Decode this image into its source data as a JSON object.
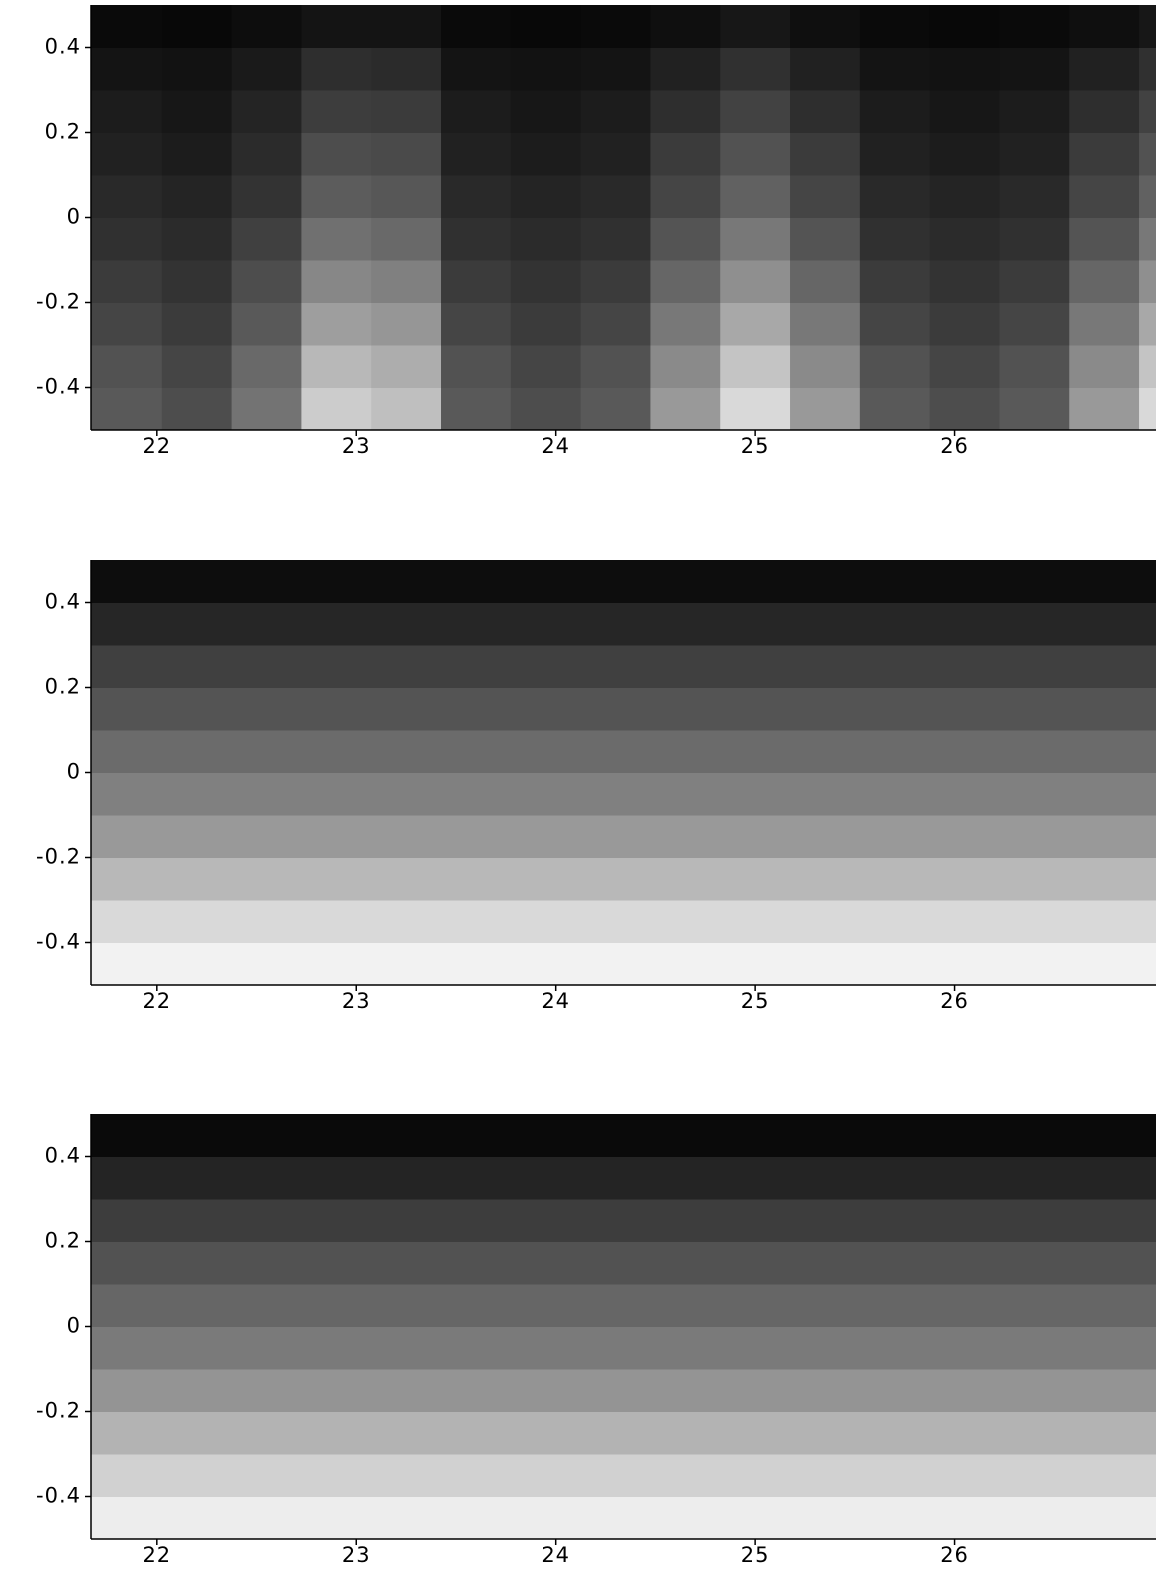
{
  "chart_data": [
    {
      "type": "heatmap",
      "cmap": "gray",
      "x": [
        21.85,
        22.2,
        22.55,
        22.9,
        23.25,
        23.6,
        23.95,
        24.3,
        24.65,
        25.0,
        25.35,
        25.7,
        26.05,
        26.4,
        26.75,
        27.1
      ],
      "y": [
        -0.45,
        -0.35,
        -0.25,
        -0.15,
        -0.05,
        0.05,
        0.15,
        0.25,
        0.35,
        0.45
      ],
      "z": [
        [
          0.35,
          0.3,
          0.45,
          0.8,
          0.75,
          0.35,
          0.3,
          0.35,
          0.6,
          0.85,
          0.6,
          0.35,
          0.3,
          0.35,
          0.6,
          0.85
        ],
        [
          0.32,
          0.27,
          0.41,
          0.72,
          0.68,
          0.32,
          0.27,
          0.32,
          0.54,
          0.77,
          0.54,
          0.32,
          0.27,
          0.32,
          0.54,
          0.77
        ],
        [
          0.27,
          0.23,
          0.35,
          0.62,
          0.59,
          0.27,
          0.23,
          0.27,
          0.47,
          0.66,
          0.47,
          0.27,
          0.23,
          0.27,
          0.47,
          0.66
        ],
        [
          0.23,
          0.2,
          0.3,
          0.53,
          0.5,
          0.23,
          0.2,
          0.23,
          0.4,
          0.56,
          0.4,
          0.23,
          0.2,
          0.23,
          0.4,
          0.56
        ],
        [
          0.19,
          0.17,
          0.25,
          0.44,
          0.41,
          0.19,
          0.17,
          0.19,
          0.33,
          0.47,
          0.33,
          0.19,
          0.17,
          0.19,
          0.33,
          0.47
        ],
        [
          0.16,
          0.14,
          0.2,
          0.36,
          0.34,
          0.16,
          0.14,
          0.16,
          0.27,
          0.38,
          0.27,
          0.16,
          0.14,
          0.16,
          0.27,
          0.38
        ],
        [
          0.13,
          0.11,
          0.17,
          0.3,
          0.29,
          0.13,
          0.11,
          0.13,
          0.23,
          0.32,
          0.23,
          0.13,
          0.11,
          0.13,
          0.23,
          0.32
        ],
        [
          0.11,
          0.09,
          0.14,
          0.24,
          0.23,
          0.11,
          0.09,
          0.11,
          0.18,
          0.26,
          0.18,
          0.11,
          0.09,
          0.11,
          0.18,
          0.26
        ],
        [
          0.08,
          0.07,
          0.1,
          0.18,
          0.17,
          0.08,
          0.07,
          0.08,
          0.13,
          0.19,
          0.13,
          0.08,
          0.07,
          0.08,
          0.13,
          0.19
        ],
        [
          0.04,
          0.03,
          0.05,
          0.08,
          0.08,
          0.04,
          0.03,
          0.04,
          0.06,
          0.09,
          0.06,
          0.04,
          0.03,
          0.04,
          0.06,
          0.09
        ]
      ],
      "xlim": [
        21.67,
        27.01
      ],
      "ylim": [
        -0.5,
        0.5
      ],
      "xticks": [
        22,
        23,
        24,
        25,
        26
      ],
      "yticks": [
        -0.4,
        -0.2,
        0,
        0.2,
        0.4
      ]
    },
    {
      "type": "heatmap",
      "cmap": "gray",
      "x": [
        24.34
      ],
      "y": [
        -0.45,
        -0.35,
        -0.25,
        -0.15,
        -0.05,
        0.05,
        0.15,
        0.25,
        0.35,
        0.45
      ],
      "z": [
        [
          0.95
        ],
        [
          0.85
        ],
        [
          0.72
        ],
        [
          0.6
        ],
        [
          0.5
        ],
        [
          0.42
        ],
        [
          0.33
        ],
        [
          0.25
        ],
        [
          0.15
        ],
        [
          0.05
        ]
      ],
      "xlim": [
        21.67,
        27.01
      ],
      "ylim": [
        -0.5,
        0.5
      ],
      "xticks": [
        22,
        23,
        24,
        25,
        26
      ],
      "yticks": [
        -0.4,
        -0.2,
        0,
        0.2,
        0.4
      ]
    },
    {
      "type": "heatmap",
      "cmap": "gray",
      "x": [
        24.34
      ],
      "y": [
        -0.45,
        -0.35,
        -0.25,
        -0.15,
        -0.05,
        0.05,
        0.15,
        0.25,
        0.35,
        0.45
      ],
      "z": [
        [
          0.93
        ],
        [
          0.82
        ],
        [
          0.7
        ],
        [
          0.58
        ],
        [
          0.48
        ],
        [
          0.4
        ],
        [
          0.32
        ],
        [
          0.24
        ],
        [
          0.14
        ],
        [
          0.04
        ]
      ],
      "xlim": [
        21.67,
        27.01
      ],
      "ylim": [
        -0.5,
        0.5
      ],
      "xticks": [
        22,
        23,
        24,
        25,
        26
      ],
      "yticks": [
        -0.4,
        -0.2,
        0,
        0.2,
        0.4
      ]
    }
  ]
}
